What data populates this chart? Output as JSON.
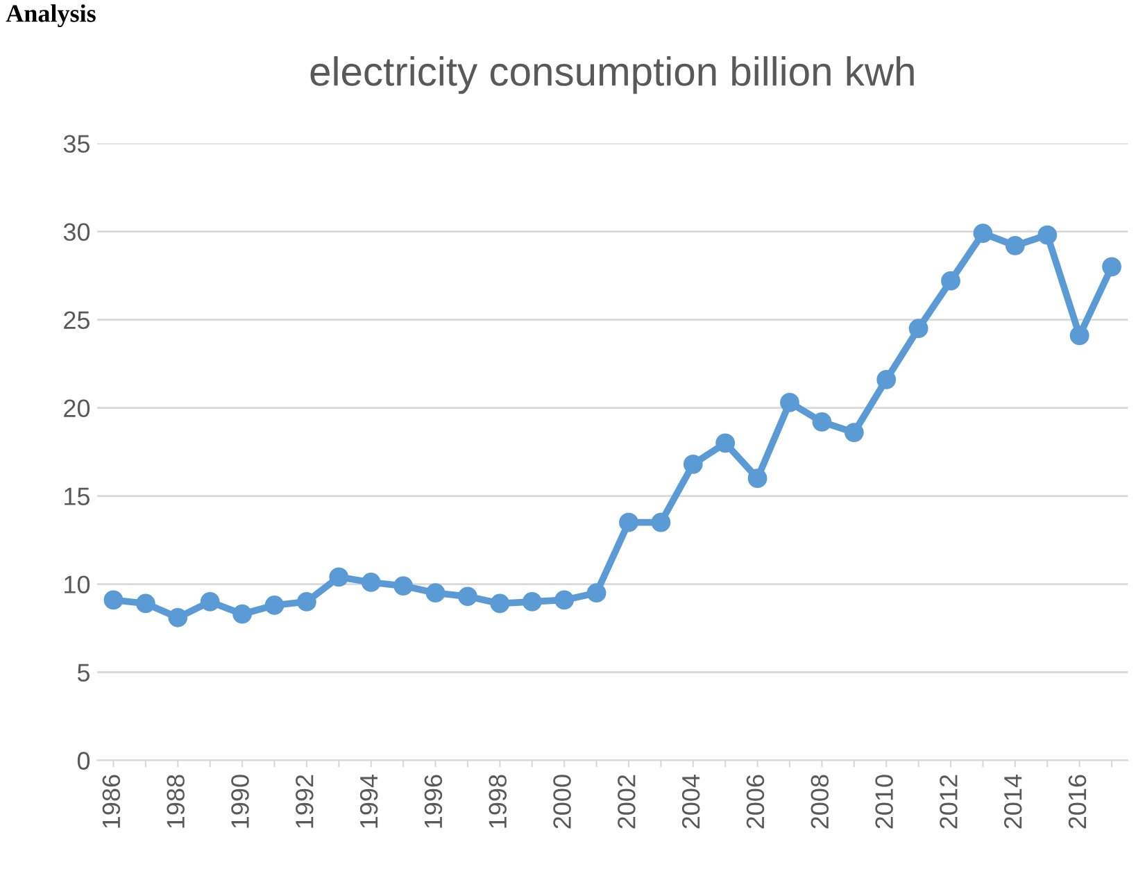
{
  "chart_data": {
    "type": "line",
    "title": "electricity consumption billion kwh",
    "annotations": [
      "Analysis"
    ],
    "categories": [
      "1986",
      null,
      "1988",
      null,
      "1990",
      null,
      "1992",
      null,
      "1994",
      null,
      "1996",
      null,
      "1998",
      null,
      "2000",
      null,
      "2002",
      null,
      "2004",
      null,
      "2006",
      null,
      "2008",
      null,
      "2010",
      null,
      "2012",
      null,
      "2014",
      null,
      "2016",
      null
    ],
    "series": [
      {
        "color": "#5b9bd5",
        "values": [
          9.1,
          8.9,
          8.1,
          9.0,
          8.3,
          8.8,
          9.0,
          10.4,
          10.1,
          9.9,
          9.5,
          9.3,
          8.9,
          9.0,
          9.1,
          9.5,
          13.5,
          13.5,
          16.8,
          18.0,
          16.0,
          20.3,
          19.2,
          18.6,
          21.6,
          24.5,
          27.2,
          29.9,
          29.2,
          29.8,
          24.1,
          28.0
        ]
      }
    ],
    "ylim": [
      0,
      35
    ],
    "yticks": [
      0,
      5,
      10,
      15,
      20,
      25,
      30,
      35
    ],
    "grid": "y",
    "marker": "circle",
    "line_style": "solid"
  }
}
